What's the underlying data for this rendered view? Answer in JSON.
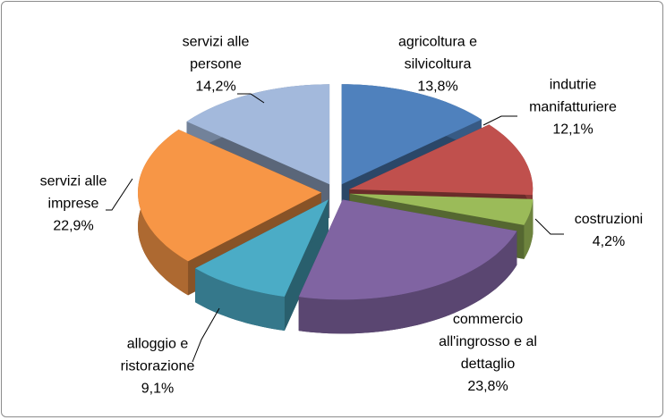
{
  "chart_data": {
    "type": "pie3d",
    "categories": [
      "agricoltura e silvicoltura",
      "indutrie manifatturiere",
      "costruzioni",
      "commercio all'ingrosso e al dettaglio",
      "alloggio e ristorazione",
      "servizi alle imprese",
      "servizi alle persone"
    ],
    "values": [
      13.8,
      12.1,
      4.2,
      23.8,
      9.1,
      22.9,
      14.2
    ],
    "value_labels": [
      "13,8%",
      "12,1%",
      "4,2%",
      "23,8%",
      "9,1%",
      "22,9%",
      "14,2%"
    ],
    "colors": [
      "#4f81bd",
      "#c0504d",
      "#9bbb59",
      "#8064a2",
      "#4bacc6",
      "#f79646",
      "#a3b9dc"
    ]
  }
}
